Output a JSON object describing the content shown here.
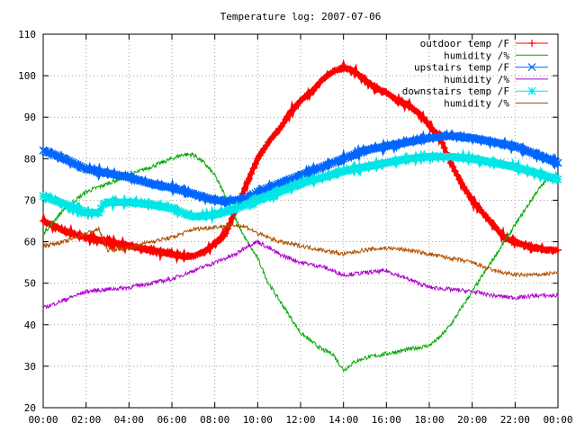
{
  "chart_data": {
    "type": "line",
    "title": "Temperature log: 2007-07-06",
    "xlabel": "",
    "ylabel": "",
    "xlim": [
      0,
      24
    ],
    "ylim": [
      20,
      110
    ],
    "grid": true,
    "legend_position": "top-right",
    "x_ticks": [
      {
        "value": 0,
        "label": "00:00"
      },
      {
        "value": 2,
        "label": "02:00"
      },
      {
        "value": 4,
        "label": "04:00"
      },
      {
        "value": 6,
        "label": "06:00"
      },
      {
        "value": 8,
        "label": "08:00"
      },
      {
        "value": 10,
        "label": "10:00"
      },
      {
        "value": 12,
        "label": "12:00"
      },
      {
        "value": 14,
        "label": "14:00"
      },
      {
        "value": 16,
        "label": "16:00"
      },
      {
        "value": 18,
        "label": "18:00"
      },
      {
        "value": 20,
        "label": "20:00"
      },
      {
        "value": 22,
        "label": "22:00"
      },
      {
        "value": 24,
        "label": "00:00"
      }
    ],
    "y_ticks": [
      20,
      30,
      40,
      50,
      60,
      70,
      80,
      90,
      100,
      110
    ],
    "series": [
      {
        "name": "outdoor temp /F",
        "color": "#ff0000",
        "marker": "plus",
        "thick": true,
        "x": [
          0,
          1,
          2,
          3,
          4,
          5,
          6,
          6.5,
          7,
          7.5,
          8,
          8.5,
          9,
          9.5,
          10,
          10.5,
          11,
          11.5,
          12,
          12.5,
          13,
          13.5,
          14,
          14.3,
          14.5,
          15,
          15.5,
          16,
          16.5,
          17,
          17.5,
          18,
          18.5,
          19,
          19.5,
          20,
          20.5,
          21,
          21.5,
          22,
          22.5,
          23,
          23.5,
          24
        ],
        "y": [
          65,
          62.5,
          61,
          60,
          59,
          58,
          57,
          56.5,
          56.5,
          57.5,
          59.5,
          62,
          68,
          74,
          80,
          84,
          87,
          91,
          94,
          96,
          99,
          101,
          102,
          101.5,
          101,
          99,
          97,
          96,
          94,
          93,
          91,
          88,
          85,
          79,
          74,
          70,
          67,
          64,
          61,
          60,
          59,
          58.5,
          58,
          58
        ]
      },
      {
        "name": "humidity /%",
        "color": "#00aa00",
        "marker": "none",
        "thick": false,
        "x": [
          0,
          0.5,
          1,
          1.5,
          2,
          3,
          4,
          5,
          6,
          6.5,
          7,
          7.5,
          8,
          8.5,
          9,
          9.5,
          10,
          10.5,
          11,
          11.5,
          12,
          12.5,
          13,
          13.5,
          14,
          14.5,
          15,
          16,
          17,
          18,
          18.5,
          19,
          19.5,
          20,
          20.5,
          21,
          21.5,
          22,
          22.5,
          23,
          23.5,
          24
        ],
        "y": [
          62,
          65,
          68,
          70,
          72,
          74,
          76,
          78,
          80,
          81,
          81,
          79,
          76,
          71,
          65,
          60,
          56,
          50,
          46,
          42,
          38,
          36,
          34,
          33,
          29,
          31,
          32,
          33,
          34,
          35,
          37,
          40,
          44,
          48,
          52,
          56,
          60,
          64,
          68,
          72,
          75,
          76
        ]
      },
      {
        "name": "upstairs temp /F",
        "color": "#0066ff",
        "marker": "cross",
        "thick": true,
        "x": [
          0,
          1,
          2,
          3,
          4,
          5,
          6,
          7,
          8,
          8.5,
          9,
          9.5,
          10,
          11,
          12,
          13,
          14,
          15,
          16,
          17,
          18,
          19,
          20,
          21,
          22,
          23,
          24
        ],
        "y": [
          82,
          80,
          77.5,
          76.5,
          75.5,
          74,
          73,
          71.5,
          70,
          69.8,
          70,
          70.5,
          72,
          74,
          76,
          78,
          80,
          82,
          83,
          84,
          85,
          85.5,
          85,
          84,
          83,
          81,
          79
        ]
      },
      {
        "name": "humidity /%",
        "color": "#b000d0",
        "marker": "none",
        "thick": false,
        "x": [
          0,
          1,
          2,
          3,
          4,
          5,
          6,
          7,
          8,
          8.5,
          9,
          9.5,
          10,
          11,
          12,
          13,
          14,
          15,
          16,
          17,
          18,
          19,
          20,
          21,
          22,
          23,
          24
        ],
        "y": [
          44,
          46,
          48,
          48.5,
          49,
          50,
          51,
          53,
          55,
          56,
          57,
          59,
          60,
          57,
          55,
          54,
          52,
          52.5,
          53,
          51,
          49,
          48.5,
          48,
          47,
          46.5,
          47,
          47
        ]
      },
      {
        "name": "downstairs temp /F",
        "color": "#00e6e6",
        "marker": "star",
        "thick": true,
        "x": [
          0,
          1,
          2,
          2.6,
          2.8,
          3,
          4,
          5,
          6,
          7,
          8,
          9,
          10,
          11,
          12,
          13,
          14,
          15,
          16,
          17,
          18,
          19,
          20,
          21,
          22,
          23,
          24
        ],
        "y": [
          71,
          69,
          67,
          67,
          69,
          69.5,
          69.5,
          69,
          68,
          66,
          66.5,
          68,
          70,
          72,
          74,
          75.5,
          77,
          78,
          79,
          80,
          80.5,
          80.5,
          80,
          79,
          78,
          76.5,
          75
        ]
      },
      {
        "name": "humidity /%",
        "color": "#b05000",
        "marker": "none",
        "thick": false,
        "x": [
          0,
          1,
          2,
          2.6,
          3,
          4,
          5,
          6,
          7,
          8,
          9,
          9.5,
          10,
          11,
          12,
          13,
          14,
          15,
          16,
          17,
          18,
          19,
          20,
          21,
          22,
          23,
          24
        ],
        "y": [
          59,
          60,
          62,
          63,
          58,
          58.5,
          60,
          61,
          63,
          63.5,
          64,
          63.5,
          62,
          60,
          59,
          58,
          57,
          58,
          58.5,
          58,
          57,
          56,
          55,
          53,
          52,
          52,
          52.5
        ]
      }
    ]
  }
}
